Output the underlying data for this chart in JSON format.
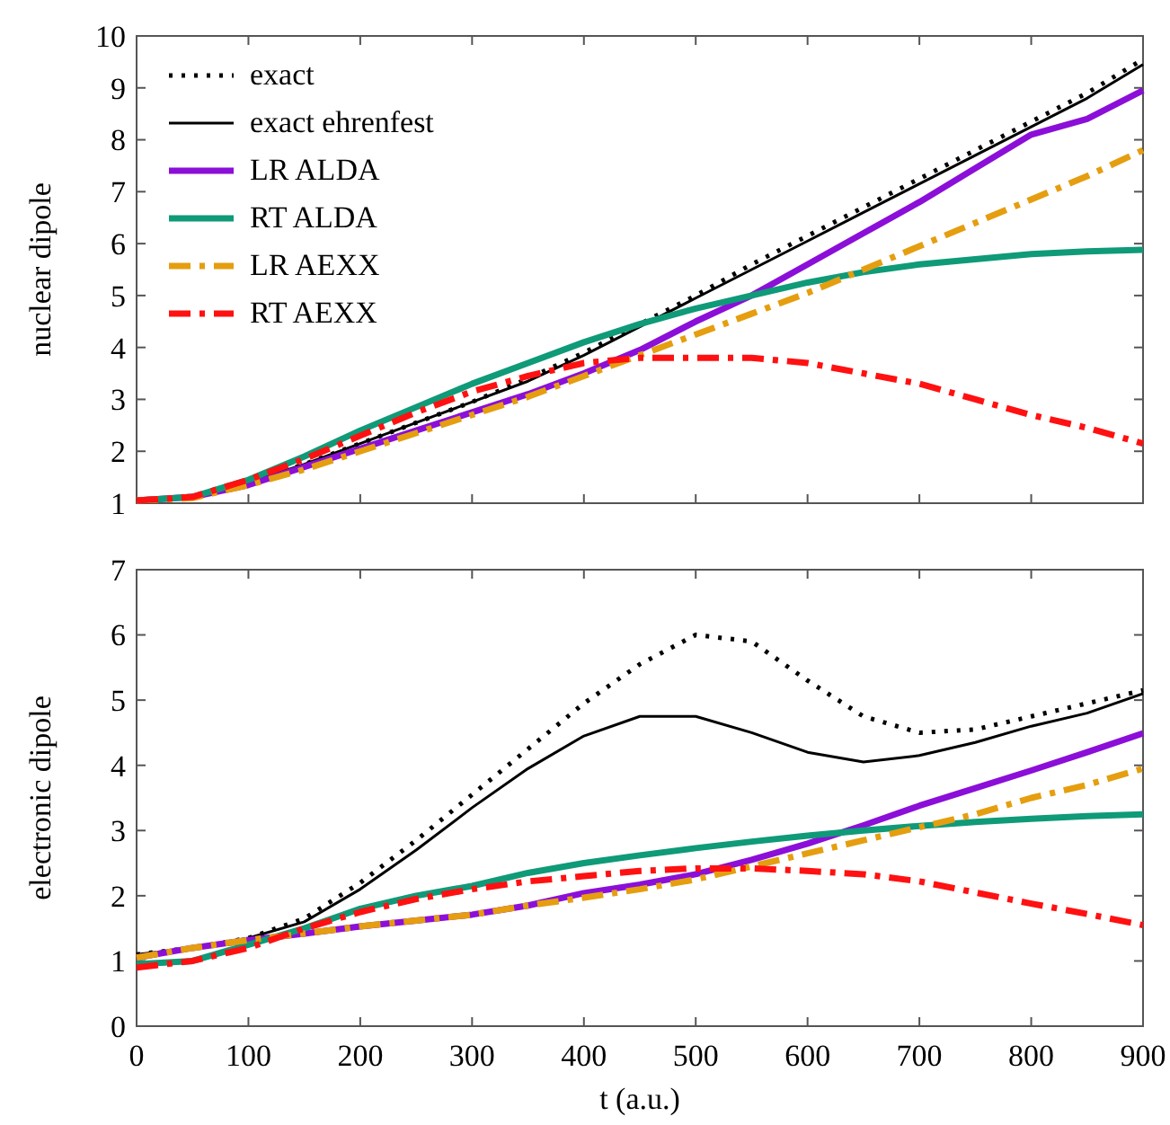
{
  "chart_data": [
    {
      "type": "line",
      "ylabel": "nuclear dipole",
      "x": [
        0,
        50,
        100,
        150,
        200,
        250,
        300,
        350,
        400,
        450,
        500,
        550,
        600,
        650,
        700,
        750,
        800,
        850,
        900
      ],
      "xlim": [
        0,
        900
      ],
      "xticks": [
        0,
        100,
        200,
        300,
        400,
        500,
        600,
        700,
        800,
        900
      ],
      "ylim": [
        1,
        10
      ],
      "yticks": [
        1,
        2,
        3,
        4,
        5,
        6,
        7,
        8,
        9,
        10
      ],
      "tick_labels": "y",
      "legend": "top left",
      "grid": false,
      "series": [
        {
          "name": "exact",
          "color": "#000000",
          "line_style": "dotted",
          "values": [
            1.05,
            1.12,
            1.4,
            1.75,
            2.15,
            2.55,
            2.95,
            3.4,
            3.9,
            4.45,
            5.0,
            5.6,
            6.15,
            6.7,
            7.25,
            7.8,
            8.35,
            8.9,
            9.55
          ]
        },
        {
          "name": "exact ehrenfest",
          "color": "#000000",
          "line_style": "solid",
          "values": [
            1.05,
            1.12,
            1.4,
            1.75,
            2.15,
            2.55,
            2.95,
            3.35,
            3.85,
            4.4,
            4.95,
            5.5,
            6.05,
            6.6,
            7.15,
            7.7,
            8.25,
            8.8,
            9.45
          ]
        },
        {
          "name": "LR ALDA",
          "color": "#8b0fd8",
          "line_style": "solid",
          "values": [
            1.05,
            1.12,
            1.35,
            1.7,
            2.05,
            2.4,
            2.75,
            3.1,
            3.5,
            3.95,
            4.5,
            5.0,
            5.6,
            6.2,
            6.8,
            7.45,
            8.1,
            8.4,
            8.95
          ]
        },
        {
          "name": "RT ALDA",
          "color": "#0f9a78",
          "line_style": "solid",
          "values": [
            1.05,
            1.12,
            1.45,
            1.9,
            2.4,
            2.85,
            3.3,
            3.7,
            4.1,
            4.45,
            4.75,
            5.0,
            5.25,
            5.45,
            5.6,
            5.7,
            5.8,
            5.85,
            5.88
          ]
        },
        {
          "name": "LR AEXX",
          "color": "#e59e0f",
          "line_style": "dashed",
          "values": [
            1.05,
            1.1,
            1.35,
            1.65,
            2.0,
            2.35,
            2.7,
            3.05,
            3.45,
            3.85,
            4.25,
            4.65,
            5.05,
            5.5,
            5.95,
            6.4,
            6.85,
            7.3,
            7.8
          ]
        },
        {
          "name": "RT AEXX",
          "color": "#ff1111",
          "line_style": "dashed",
          "values": [
            1.05,
            1.12,
            1.45,
            1.85,
            2.3,
            2.75,
            3.15,
            3.45,
            3.7,
            3.8,
            3.8,
            3.8,
            3.7,
            3.5,
            3.3,
            3.0,
            2.7,
            2.45,
            2.15
          ]
        }
      ]
    },
    {
      "type": "line",
      "ylabel": "electronic dipole",
      "xlabel": "t (a.u.)",
      "x": [
        0,
        50,
        100,
        150,
        200,
        250,
        300,
        350,
        400,
        450,
        500,
        550,
        600,
        650,
        700,
        750,
        800,
        850,
        900
      ],
      "xlim": [
        0,
        900
      ],
      "xticks": [
        0,
        100,
        200,
        300,
        400,
        500,
        600,
        700,
        800,
        900
      ],
      "ylim": [
        0,
        7
      ],
      "yticks": [
        0,
        1,
        2,
        3,
        4,
        5,
        6,
        7
      ],
      "legend": false,
      "grid": false,
      "series": [
        {
          "color": "#000000",
          "line_style": "dotted",
          "values": [
            1.1,
            1.2,
            1.35,
            1.65,
            2.2,
            2.85,
            3.55,
            4.25,
            4.95,
            5.55,
            6.0,
            5.9,
            5.3,
            4.75,
            4.5,
            4.55,
            4.75,
            4.95,
            5.15
          ]
        },
        {
          "color": "#000000",
          "line_style": "solid",
          "values": [
            1.1,
            1.2,
            1.35,
            1.6,
            2.1,
            2.7,
            3.35,
            3.95,
            4.45,
            4.75,
            4.75,
            4.5,
            4.2,
            4.05,
            4.15,
            4.35,
            4.6,
            4.8,
            5.1
          ]
        },
        {
          "color": "#8b0fd8",
          "line_style": "solid",
          "values": [
            1.05,
            1.2,
            1.32,
            1.42,
            1.53,
            1.62,
            1.71,
            1.85,
            2.04,
            2.17,
            2.33,
            2.55,
            2.8,
            3.08,
            3.38,
            3.65,
            3.92,
            4.2,
            4.49
          ]
        },
        {
          "color": "#0f9a78",
          "line_style": "solid",
          "values": [
            0.95,
            1.0,
            1.25,
            1.5,
            1.8,
            2.0,
            2.15,
            2.35,
            2.5,
            2.62,
            2.73,
            2.83,
            2.92,
            3.0,
            3.07,
            3.13,
            3.18,
            3.22,
            3.25
          ]
        },
        {
          "color": "#e59e0f",
          "line_style": "dashed",
          "values": [
            1.05,
            1.2,
            1.32,
            1.42,
            1.53,
            1.62,
            1.71,
            1.85,
            1.97,
            2.1,
            2.25,
            2.45,
            2.65,
            2.85,
            3.05,
            3.25,
            3.5,
            3.7,
            3.95
          ]
        },
        {
          "color": "#ff1111",
          "line_style": "dashed",
          "values": [
            0.9,
            1.0,
            1.2,
            1.5,
            1.75,
            1.95,
            2.1,
            2.22,
            2.3,
            2.38,
            2.42,
            2.42,
            2.38,
            2.33,
            2.22,
            2.05,
            1.88,
            1.72,
            1.55
          ]
        }
      ]
    }
  ]
}
